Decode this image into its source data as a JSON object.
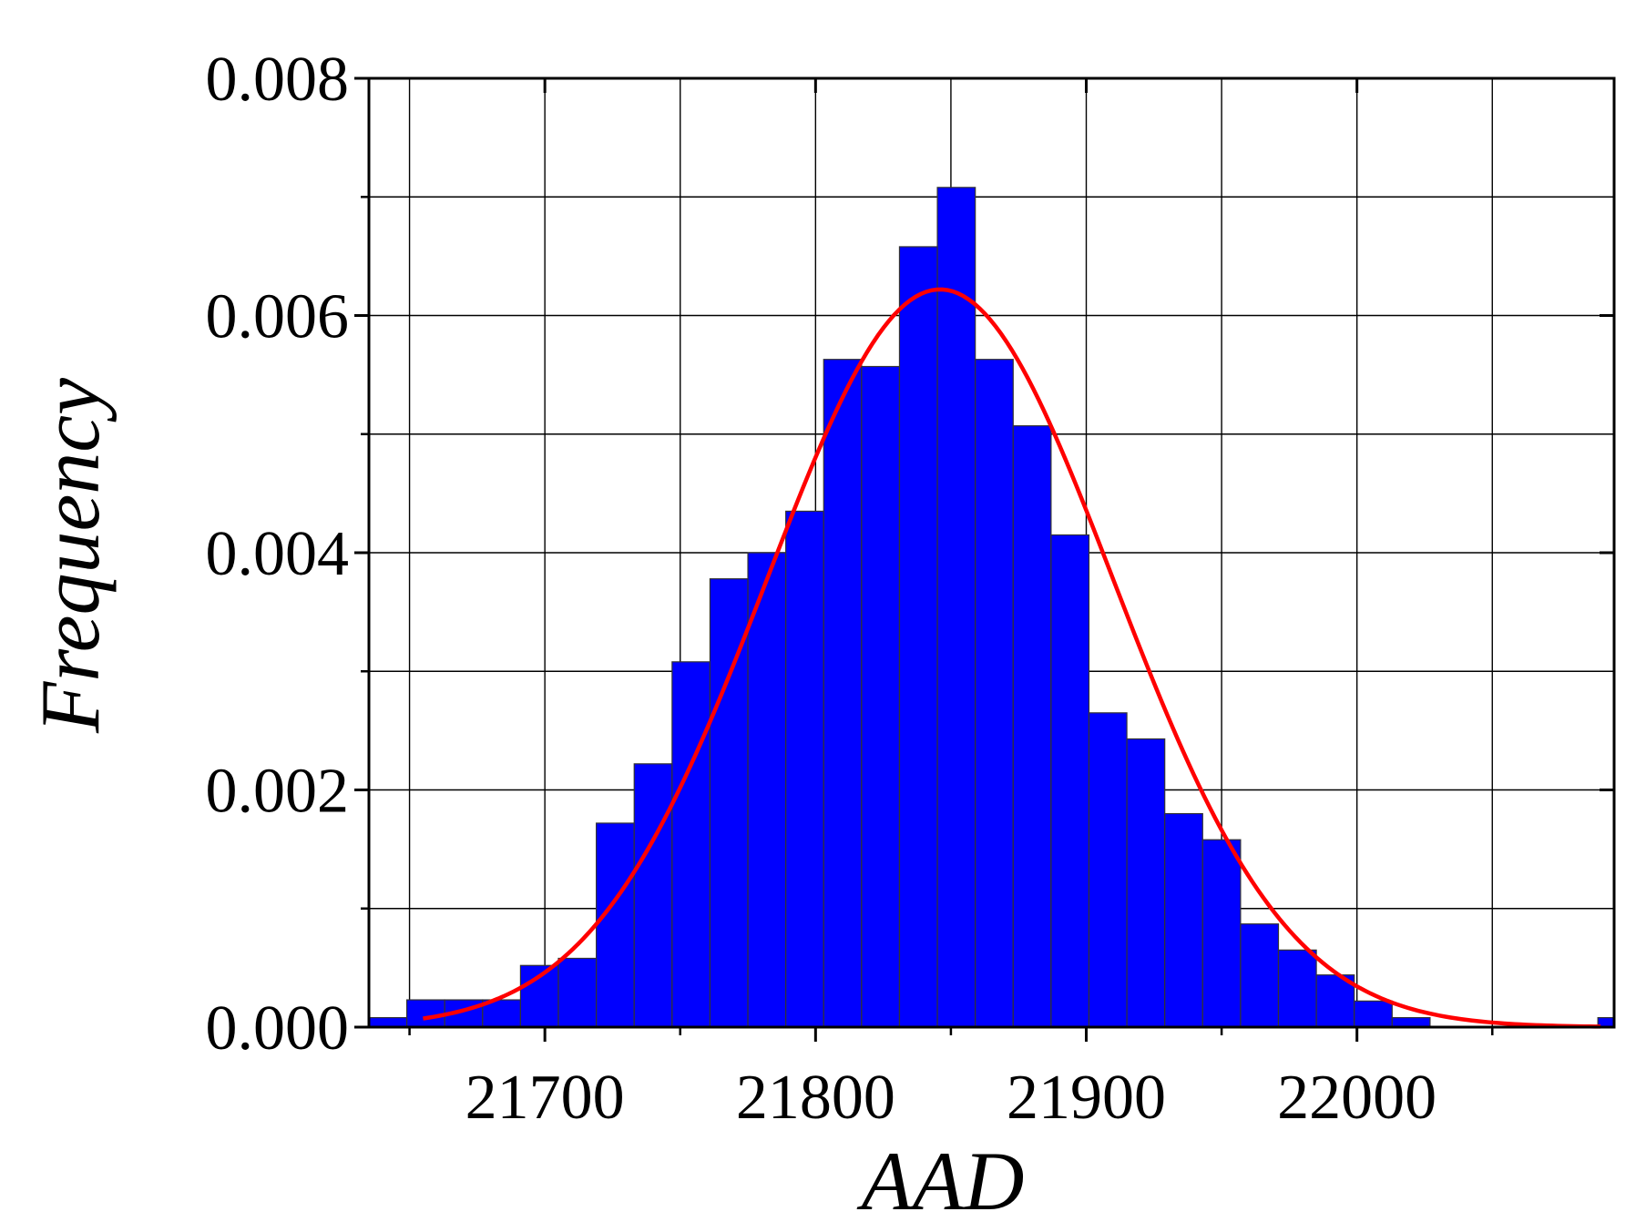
{
  "chart_data": {
    "type": "bar",
    "xlabel": "AAD",
    "ylabel": "Frequency",
    "xlim": [
      21635,
      22095
    ],
    "ylim": [
      0,
      0.008
    ],
    "x_ticks": [
      21700,
      21800,
      21900,
      22000
    ],
    "x_tick_labels": [
      "21700",
      "21800",
      "21900",
      "22000"
    ],
    "y_ticks": [
      0,
      0.002,
      0.004,
      0.006,
      0.008
    ],
    "y_tick_labels": [
      "0.000",
      "0.002",
      "0.004",
      "0.006",
      "0.008"
    ],
    "grid": true,
    "bin_width": 14,
    "bins": [
      {
        "x0": 21635,
        "x1": 21649,
        "value": 8e-05
      },
      {
        "x0": 21649,
        "x1": 21663,
        "value": 0.00023
      },
      {
        "x0": 21663,
        "x1": 21677,
        "value": 0.00023
      },
      {
        "x0": 21677,
        "x1": 21691,
        "value": 0.00023
      },
      {
        "x0": 21691,
        "x1": 21705,
        "value": 0.00052
      },
      {
        "x0": 21705,
        "x1": 21719,
        "value": 0.00058
      },
      {
        "x0": 21719,
        "x1": 21733,
        "value": 0.00172
      },
      {
        "x0": 21733,
        "x1": 21747,
        "value": 0.00222
      },
      {
        "x0": 21747,
        "x1": 21761,
        "value": 0.00308
      },
      {
        "x0": 21761,
        "x1": 21775,
        "value": 0.00378
      },
      {
        "x0": 21775,
        "x1": 21789,
        "value": 0.004
      },
      {
        "x0": 21789,
        "x1": 21803,
        "value": 0.00435
      },
      {
        "x0": 21803,
        "x1": 21817,
        "value": 0.00563
      },
      {
        "x0": 21817,
        "x1": 21831,
        "value": 0.00557
      },
      {
        "x0": 21831,
        "x1": 21845,
        "value": 0.00658
      },
      {
        "x0": 21845,
        "x1": 21859,
        "value": 0.00708
      },
      {
        "x0": 21859,
        "x1": 21873,
        "value": 0.00563
      },
      {
        "x0": 21873,
        "x1": 21887,
        "value": 0.00507
      },
      {
        "x0": 21887,
        "x1": 21901,
        "value": 0.00415
      },
      {
        "x0": 21901,
        "x1": 21915,
        "value": 0.00265
      },
      {
        "x0": 21915,
        "x1": 21929,
        "value": 0.00243
      },
      {
        "x0": 21929,
        "x1": 21943,
        "value": 0.0018
      },
      {
        "x0": 21943,
        "x1": 21957,
        "value": 0.00158
      },
      {
        "x0": 21957,
        "x1": 21971,
        "value": 0.00087
      },
      {
        "x0": 21971,
        "x1": 21985,
        "value": 0.00065
      },
      {
        "x0": 21985,
        "x1": 21999,
        "value": 0.00044
      },
      {
        "x0": 21999,
        "x1": 22013,
        "value": 0.00022
      },
      {
        "x0": 22013,
        "x1": 22027,
        "value": 8e-05
      },
      {
        "x0": 22089,
        "x1": 22095,
        "value": 8e-05
      }
    ],
    "fit_curve": {
      "type": "normal",
      "mean": 21846,
      "sd": 64,
      "peak": 0.00622,
      "x_range": [
        21655,
        22090
      ]
    },
    "colors": {
      "bars": "#0000ff",
      "bar_edge": "#333333",
      "curve": "#ff0000",
      "grid": "#000000"
    }
  }
}
